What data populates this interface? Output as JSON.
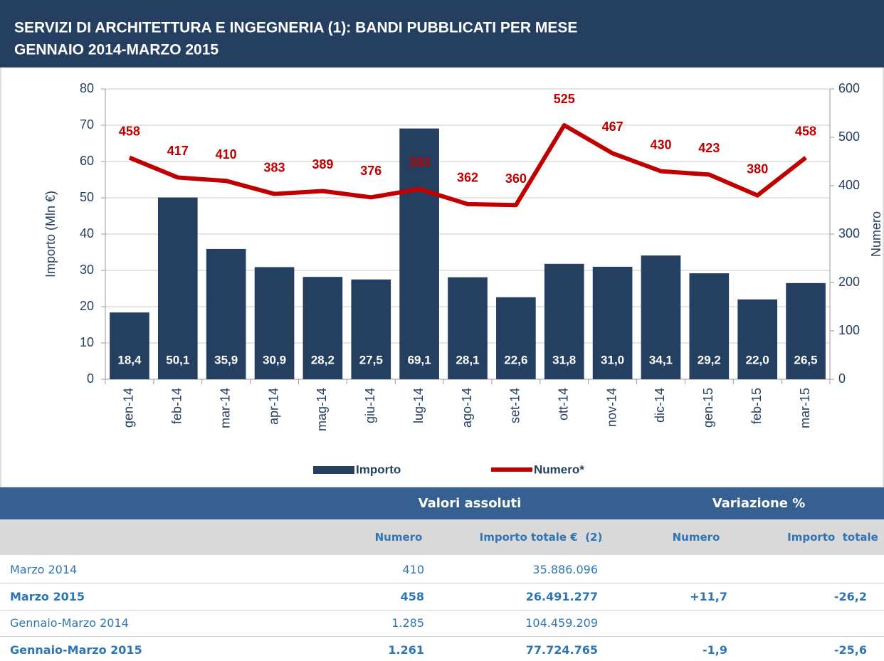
{
  "chart_data": {
    "type": "bar_line",
    "title": "SERVIZI DI ARCHITETTURA E INGEGNERIA (1): BANDI PUBBLICATI PER MESE",
    "subtitle": "GENNAIO 2014-MARZO 2015",
    "y_label": "Importo (Mln €)",
    "y2_label": "Numero",
    "categories": [
      "gen-14",
      "feb-14",
      "mar-14",
      "apr-14",
      "mag-14",
      "giu-14",
      "lug-14",
      "ago-14",
      "set-14",
      "ott-14",
      "nov-14",
      "dic-14",
      "gen-15",
      "feb-15",
      "mar-15"
    ],
    "series": [
      {
        "name": "Importo",
        "type": "bar",
        "color": "#243f60",
        "values": [
          18.4,
          50.1,
          35.9,
          30.9,
          28.2,
          27.5,
          69.1,
          28.1,
          22.6,
          31.8,
          31.0,
          34.1,
          29.2,
          22.0,
          26.5
        ],
        "value_labels": [
          "18,4",
          "50,1",
          "35,9",
          "30,9",
          "28,2",
          "27,5",
          "69,1",
          "28,1",
          "22,6",
          "31,8",
          "31,0",
          "34,1",
          "29,2",
          "22,0",
          "26,5"
        ]
      },
      {
        "name": "Numero*",
        "type": "line",
        "axis": "y2",
        "color": "#c00000",
        "values": [
          458,
          417,
          410,
          383,
          389,
          376,
          393,
          362,
          360,
          525,
          467,
          430,
          423,
          380,
          458
        ]
      }
    ],
    "ylim": [
      0,
      80
    ],
    "yticks": [
      0,
      10,
      20,
      30,
      40,
      50,
      60,
      70,
      80
    ],
    "y2lim": [
      0,
      600
    ],
    "y2ticks": [
      0,
      100,
      200,
      300,
      400,
      500,
      600
    ],
    "grid": true,
    "legend": "bottom"
  },
  "table": {
    "groups": [
      "Valori assoluti",
      "Variazione %"
    ],
    "columns": [
      "Numero",
      "Importo totale €  (2)",
      "Numero",
      "Importo  totale"
    ],
    "rows": [
      {
        "label": "Marzo 2014",
        "bold": false,
        "cells": [
          "410",
          "35.886.096"
        ]
      },
      {
        "label": "Marzo 2015",
        "bold": true,
        "cells": [
          "458",
          "26.491.277",
          "+11,7",
          "-26,2"
        ]
      },
      {
        "label": "Gennaio-Marzo 2014",
        "bold": false,
        "cells": [
          "1.285",
          "104.459.209"
        ]
      },
      {
        "label": "Gennaio-Marzo 2015",
        "bold": true,
        "cells": [
          "1.261",
          "77.724.765",
          "-1,9",
          "-25,6"
        ]
      }
    ]
  }
}
